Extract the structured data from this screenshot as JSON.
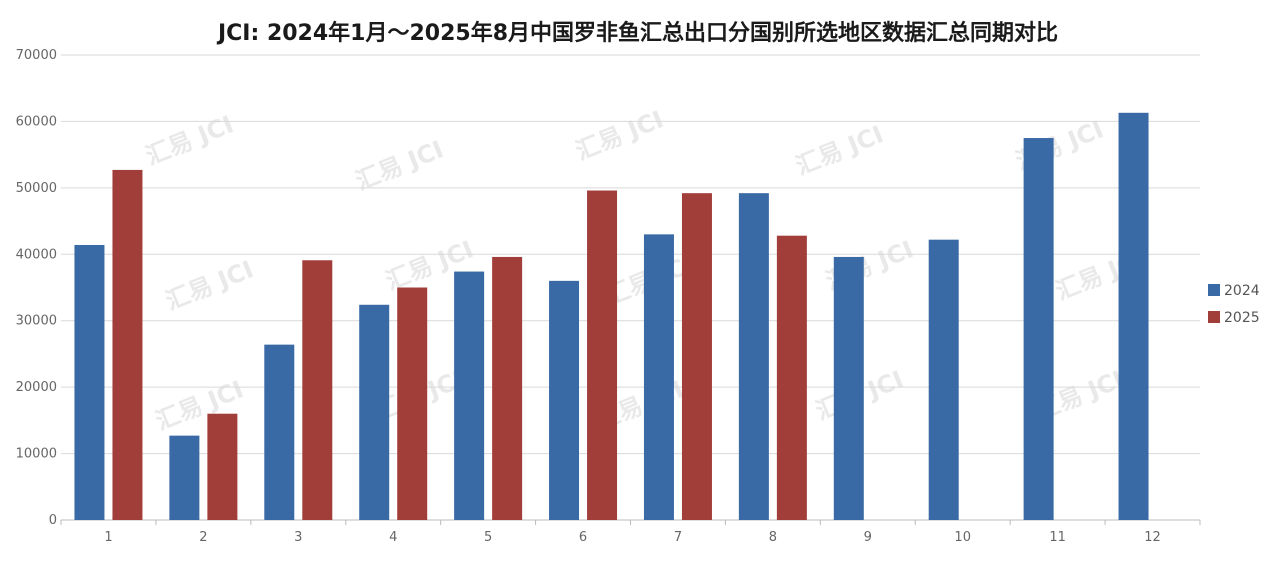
{
  "chart_data": {
    "type": "bar",
    "title": "JCI: 2024年1月～2025年8月中国罗非鱼汇总出口分国别所选地区数据汇总同期对比",
    "categories": [
      "1",
      "2",
      "3",
      "4",
      "5",
      "6",
      "7",
      "8",
      "9",
      "10",
      "11",
      "12"
    ],
    "series": [
      {
        "name": "2024",
        "color": "#3a6aa5",
        "values": [
          41400,
          12700,
          26400,
          32400,
          37400,
          36000,
          43000,
          49200,
          39600,
          42200,
          57500,
          61300
        ]
      },
      {
        "name": "2025",
        "color": "#a23e3a",
        "values": [
          52700,
          16000,
          39100,
          35000,
          39600,
          49600,
          49200,
          42800,
          null,
          null,
          null,
          null
        ]
      }
    ],
    "yticks": [
      "0",
      "10000",
      "20000",
      "30000",
      "40000",
      "50000",
      "60000",
      "70000"
    ],
    "ylim": [
      0,
      70000
    ],
    "xlabel": "",
    "ylabel": "",
    "grid": true,
    "legend_position": "right",
    "watermark": "汇易 JCI"
  }
}
